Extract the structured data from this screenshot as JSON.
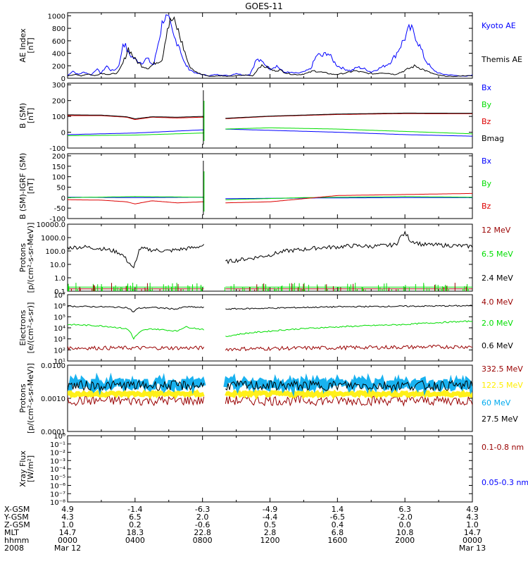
{
  "title": "GOES-11",
  "colors": {
    "blue": "#0000ff",
    "green": "#00dd00",
    "red": "#dd0000",
    "darkred": "#990000",
    "black": "#000000",
    "cyan": "#00aaee",
    "yellow": "#ffee00"
  },
  "chart_data": [
    {
      "type": "line",
      "ylabel": [
        "AE Index",
        "[nT]"
      ],
      "yticks": [
        "0",
        "200",
        "400",
        "600",
        "800",
        "1000"
      ],
      "ylim": [
        0,
        1050
      ],
      "series": [
        {
          "name": "Kyoto AE",
          "color": "blue",
          "x": [
            0,
            0.3,
            0.6,
            1,
            1.4,
            1.7,
            2,
            2.3,
            2.6,
            2.9,
            3.1,
            3.3,
            3.6,
            4,
            4.4,
            4.7,
            5.1,
            5.4,
            5.7,
            6,
            6.3,
            6.6,
            6.9,
            7.2,
            7.6,
            8,
            8.4,
            8.8,
            9.2,
            9.6,
            10,
            10.4,
            10.8,
            11.2,
            11.6,
            12,
            12.4,
            12.8,
            13.2,
            13.6,
            14,
            14.4,
            14.8,
            15.1,
            15.4,
            15.7,
            16,
            16.4,
            16.8,
            17.2,
            17.6,
            18,
            18.4,
            18.8,
            19.1,
            19.4,
            19.7,
            20,
            20.3,
            20.6,
            20.9,
            21.2,
            21.6,
            22,
            22.4,
            22.8,
            23.2,
            23.6,
            24
          ],
          "y": [
            40,
            120,
            60,
            100,
            50,
            150,
            80,
            200,
            120,
            150,
            250,
            600,
            400,
            300,
            250,
            320,
            200,
            600,
            1000,
            900,
            650,
            550,
            250,
            150,
            80,
            60,
            40,
            60,
            50,
            40,
            80,
            50,
            60,
            300,
            250,
            150,
            200,
            100,
            90,
            80,
            100,
            150,
            380,
            350,
            420,
            300,
            200,
            150,
            120,
            180,
            150,
            100,
            150,
            200,
            250,
            350,
            500,
            650,
            800,
            700,
            500,
            300,
            150,
            80,
            60,
            50,
            40,
            30,
            50
          ]
        },
        {
          "name": "Themis AE",
          "color": "black",
          "x": [
            0,
            0.4,
            0.8,
            1.2,
            1.6,
            2,
            2.5,
            3,
            3.3,
            3.6,
            4,
            4.4,
            4.8,
            5.2,
            5.6,
            5.9,
            6.2,
            6.5,
            6.8,
            7.2,
            7.6,
            8,
            8.5,
            9,
            9.5,
            10,
            10.5,
            11,
            11.4,
            11.8,
            12.2,
            12.6,
            13,
            13.4,
            13.8,
            14.2,
            14.6,
            15,
            15.4,
            15.8,
            16.2,
            16.6,
            17,
            17.4,
            17.8,
            18.2,
            18.6,
            19,
            19.4,
            19.8,
            20.2,
            20.6,
            21,
            21.4,
            21.8,
            22.2,
            22.6,
            23,
            23.4,
            24
          ],
          "y": [
            40,
            60,
            40,
            70,
            40,
            80,
            60,
            90,
            250,
            480,
            300,
            200,
            160,
            250,
            300,
            800,
            950,
            800,
            550,
            200,
            100,
            60,
            30,
            40,
            30,
            40,
            50,
            40,
            200,
            180,
            120,
            130,
            80,
            60,
            60,
            80,
            120,
            100,
            80,
            60,
            70,
            90,
            120,
            100,
            80,
            70,
            90,
            80,
            60,
            100,
            150,
            200,
            150,
            100,
            60,
            40,
            30,
            30,
            40,
            40
          ]
        }
      ],
      "legend": [
        "Kyoto AE",
        "Themis AE"
      ]
    },
    {
      "type": "line",
      "ylabel": [
        "B (SM)",
        "[nT]"
      ],
      "yticks": [
        "-100",
        "0",
        "100",
        "200",
        "300"
      ],
      "ylim": [
        -100,
        310
      ],
      "gap": [
        8.1,
        9.3
      ],
      "spike_at": 8.05,
      "series": [
        {
          "name": "Bx",
          "color": "blue",
          "x": [
            0,
            4,
            8,
            9.3,
            12,
            16,
            20,
            24
          ],
          "y": [
            -15,
            -5,
            15,
            20,
            12,
            0,
            -15,
            -25
          ]
        },
        {
          "name": "By",
          "color": "green",
          "x": [
            0,
            4,
            8,
            9.3,
            12,
            16,
            20,
            24
          ],
          "y": [
            -22,
            -18,
            -5,
            20,
            28,
            20,
            5,
            -10
          ]
        },
        {
          "name": "Bz",
          "color": "red",
          "x": [
            0,
            2,
            3.5,
            4,
            5,
            6.5,
            8,
            9.3,
            12,
            16,
            20,
            24
          ],
          "y": [
            105,
            105,
            95,
            80,
            95,
            90,
            95,
            85,
            100,
            112,
            118,
            117
          ]
        },
        {
          "name": "Bmag",
          "color": "black",
          "x": [
            0,
            2,
            3.5,
            4,
            5,
            6.5,
            8,
            9.3,
            12,
            16,
            20,
            24
          ],
          "y": [
            110,
            108,
            98,
            85,
            98,
            95,
            100,
            88,
            102,
            115,
            121,
            120
          ]
        }
      ],
      "legend": [
        "Bx",
        "By",
        "Bz",
        "Bmag"
      ]
    },
    {
      "type": "line",
      "ylabel": [
        "B (SM)-IGRF (SM)",
        "[nT]"
      ],
      "yticks": [
        "-100",
        "-50",
        "0",
        "50",
        "100",
        "150",
        "200"
      ],
      "ylim": [
        -100,
        210
      ],
      "gap": [
        8.1,
        9.3
      ],
      "spike_at": 8.05,
      "series": [
        {
          "name": "Bx",
          "color": "blue",
          "x": [
            0,
            4,
            8,
            9.3,
            14,
            20,
            24
          ],
          "y": [
            2,
            0,
            2,
            -5,
            -2,
            0,
            0
          ]
        },
        {
          "name": "By",
          "color": "green",
          "x": [
            0,
            4,
            8,
            9.3,
            14,
            20,
            24
          ],
          "y": [
            0,
            5,
            2,
            -10,
            0,
            5,
            2
          ]
        },
        {
          "name": "Bz",
          "color": "red",
          "x": [
            0,
            2,
            3.5,
            4,
            5,
            6.5,
            8,
            9.3,
            12,
            14,
            16,
            20,
            24
          ],
          "y": [
            -10,
            -12,
            -20,
            -30,
            -15,
            -25,
            -20,
            -25,
            -20,
            -5,
            10,
            15,
            20
          ]
        }
      ],
      "legend": [
        "Bx",
        "By",
        "Bz"
      ]
    },
    {
      "type": "line",
      "ylabel": [
        "Protons",
        "[p/(cm²-s-sr-MeV)]"
      ],
      "yticks": [
        "0.1",
        "1.0",
        "10.0",
        "100.0",
        "1000.0",
        "10000.0"
      ],
      "log": true,
      "ylim": [
        0.1,
        10000
      ],
      "gap": [
        8.1,
        9.3
      ],
      "series": [
        {
          "name": "12 MeV",
          "color": "darkred",
          "x": [
            0,
            24
          ],
          "y": [
            0.15,
            0.15
          ]
        },
        {
          "name": "6.5 MeV",
          "color": "green",
          "x": [
            0,
            24
          ],
          "y": [
            0.2,
            0.2
          ]
        },
        {
          "name": "2.4 MeV",
          "color": "black",
          "x": [
            0,
            1,
            2,
            3,
            3.5,
            3.9,
            4.1,
            4.3,
            5,
            6,
            7,
            7.5,
            8,
            9.3,
            10,
            11,
            12,
            12.4,
            13,
            14,
            15,
            16,
            17,
            18,
            19,
            19.5,
            20,
            20.3,
            21,
            22,
            23,
            24
          ],
          "y": [
            180,
            200,
            150,
            80,
            20,
            3,
            20,
            150,
            120,
            100,
            150,
            180,
            250,
            15,
            20,
            30,
            50,
            70,
            100,
            130,
            180,
            200,
            250,
            220,
            260,
            300,
            2000,
            600,
            300,
            280,
            250,
            220
          ]
        }
      ],
      "legend": [
        "12 MeV",
        "6.5 MeV",
        "2.4 MeV"
      ]
    },
    {
      "type": "line",
      "ylabel": [
        "Electrons",
        "[e/(cm²-s-sr)]"
      ],
      "yticks": [
        "10¹",
        "10²",
        "10³",
        "10⁴",
        "10⁵",
        "10⁶",
        "10⁷"
      ],
      "log": true,
      "ylim": [
        10,
        10000000
      ],
      "gap": [
        8.1,
        9.3
      ],
      "series": [
        {
          "name": "4.0 MeV",
          "color": "darkred",
          "x": [
            0,
            8,
            9.3,
            24
          ],
          "y": [
            150,
            150,
            120,
            200
          ]
        },
        {
          "name": "2.0 MeV",
          "color": "green",
          "x": [
            0,
            2,
            3.5,
            3.9,
            4.2,
            4.5,
            5,
            6.5,
            7,
            8,
            9.3,
            12,
            16,
            20,
            24
          ],
          "y": [
            20000,
            15000,
            8000,
            800,
            3000,
            6000,
            8000,
            5000,
            12000,
            7000,
            1500,
            5000,
            12000,
            20000,
            40000
          ]
        },
        {
          "name": "0.6 MeV",
          "color": "black",
          "x": [
            0,
            2,
            3.5,
            3.9,
            4.2,
            5,
            6.5,
            7,
            8,
            9.3,
            12,
            16,
            20,
            24
          ],
          "y": [
            900000,
            800000,
            700000,
            250000,
            600000,
            700000,
            500000,
            800000,
            700000,
            500000,
            600000,
            800000,
            900000,
            1000000
          ]
        }
      ],
      "legend": [
        "4.0 MeV",
        "2.0 MeV",
        "0.6 MeV"
      ]
    },
    {
      "type": "line",
      "ylabel": [
        "Protons",
        "[p/(cm²-s-sr-MeV)]"
      ],
      "yticks": [
        "0.0001",
        "0.0010",
        "0.0100"
      ],
      "log": true,
      "ylim": [
        0.0001,
        0.1
      ],
      "gap": [
        8.1,
        9.3
      ],
      "series": [
        {
          "name": "332.5 MeV",
          "color": "darkred",
          "x": [
            0,
            24
          ],
          "y": [
            0.0025,
            0.0025
          ]
        },
        {
          "name": "122.5 MeV",
          "color": "yellow",
          "x": [
            0,
            24
          ],
          "y": [
            0.005,
            0.005
          ]
        },
        {
          "name": "60 MeV",
          "color": "cyan",
          "x": [
            0,
            24
          ],
          "y": [
            0.014,
            0.014
          ]
        },
        {
          "name": "27.5 MeV",
          "color": "black",
          "x": [
            0,
            24
          ],
          "y": [
            0.012,
            0.012
          ]
        }
      ],
      "legend": [
        "332.5 MeV",
        "122.5 MeV",
        "60 MeV",
        "27.5 MeV"
      ]
    },
    {
      "type": "line",
      "ylabel": [
        "Xray Flux",
        "[W/m²]"
      ],
      "yticks": [
        "10⁻⁸",
        "10⁻⁷",
        "10⁻⁶",
        "10⁻⁵",
        "10⁻⁴",
        "10⁻³",
        "10⁻²",
        "10⁻¹",
        "10⁰"
      ],
      "log": true,
      "ylim": [
        1e-08,
        1
      ],
      "series": [],
      "legend": [
        "0.1-0.8 nm",
        "0.05-0.3 nm"
      ]
    }
  ],
  "legend_colors": [
    [
      "blue",
      "black"
    ],
    [
      "blue",
      "green",
      "red",
      "black"
    ],
    [
      "blue",
      "green",
      "red"
    ],
    [
      "darkred",
      "green",
      "black"
    ],
    [
      "darkred",
      "green",
      "black"
    ],
    [
      "darkred",
      "yellow",
      "cyan",
      "black"
    ],
    [
      "darkred",
      "blue"
    ]
  ],
  "xaxis": {
    "row_labels": [
      "X-GSM",
      "Y-GSM",
      "Z-GSM",
      "MLT",
      "hhmm",
      "2008"
    ],
    "columns": [
      [
        "4.9",
        "4.3",
        "1.0",
        "14.7",
        "0000",
        "Mar 12"
      ],
      [
        "-1.4",
        "6.5",
        "0.2",
        "18.3",
        "0400",
        ""
      ],
      [
        "-6.3",
        "2.0",
        "-0.6",
        "22.8",
        "0800",
        ""
      ],
      [
        "-4.9",
        "-4.4",
        "0.5",
        "2.8",
        "1200",
        ""
      ],
      [
        "1.4",
        "-6.5",
        "0.4",
        "6.8",
        "1600",
        ""
      ],
      [
        "6.3",
        "-2.0",
        "0.0",
        "10.8",
        "2000",
        ""
      ],
      [
        "4.9",
        "4.3",
        "1.0",
        "14.7",
        "0000",
        "Mar 13"
      ]
    ]
  }
}
